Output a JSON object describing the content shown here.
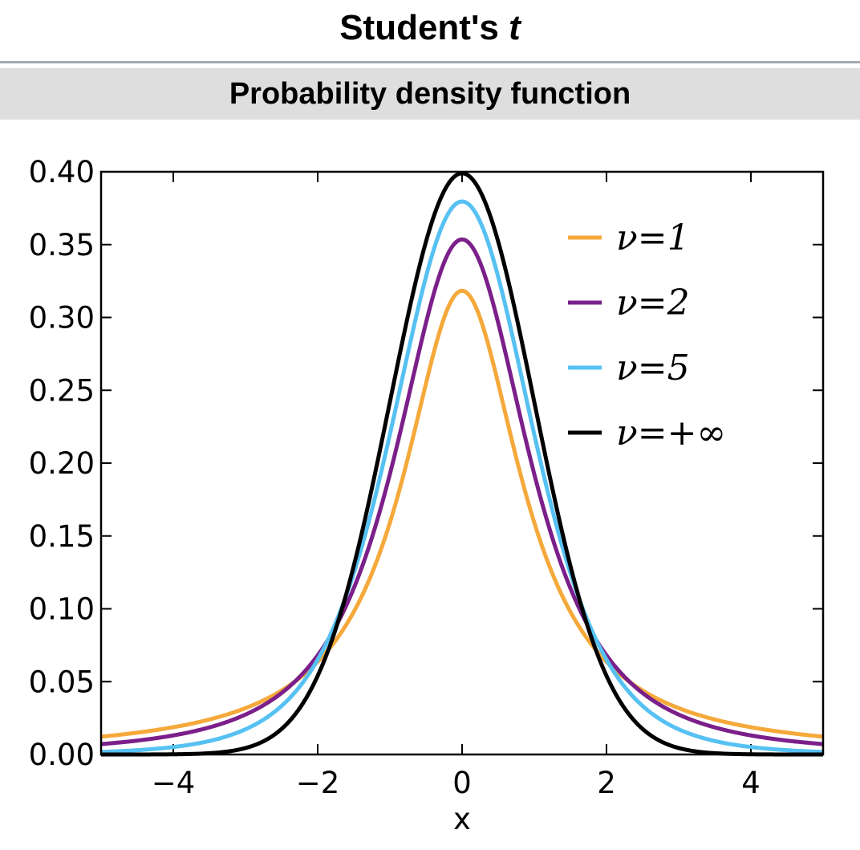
{
  "header": {
    "title_main": "Student's",
    "title_symbol": "t",
    "section": "Probability density function"
  },
  "chart_data": {
    "type": "line",
    "xlabel": "x",
    "ylabel": "",
    "xlim": [
      -5,
      5
    ],
    "ylim": [
      0,
      0.4
    ],
    "x_ticks": [
      -4,
      -2,
      0,
      2,
      4
    ],
    "x_tick_labels": [
      "−4",
      "−2",
      "0",
      "2",
      "4"
    ],
    "y_ticks": [
      0,
      0.05,
      0.1,
      0.15,
      0.2,
      0.25,
      0.3,
      0.35,
      0.4
    ],
    "y_tick_labels": [
      "0.00",
      "0.05",
      "0.10",
      "0.15",
      "0.20",
      "0.25",
      "0.30",
      "0.35",
      "0.40"
    ],
    "grid": false,
    "legend_position": "top-right",
    "x": [
      -5,
      -4.5,
      -4,
      -3.5,
      -3,
      -2.5,
      -2,
      -1.5,
      -1,
      -0.5,
      0,
      0.5,
      1,
      1.5,
      2,
      2.5,
      3,
      3.5,
      4,
      4.5,
      5
    ],
    "series": [
      {
        "name": "ν=1",
        "color": "#f5a93b",
        "dof": 1,
        "values": [
          0.0122,
          0.0149,
          0.0187,
          0.0241,
          0.0318,
          0.0439,
          0.0637,
          0.0979,
          0.1592,
          0.2546,
          0.3183,
          0.2546,
          0.1592,
          0.0979,
          0.0637,
          0.0439,
          0.0318,
          0.0241,
          0.0187,
          0.0149,
          0.0122
        ]
      },
      {
        "name": "ν=2",
        "color": "#7b1f8a",
        "dof": 2,
        "values": [
          0.0071,
          0.0095,
          0.0131,
          0.0185,
          0.0269,
          0.041,
          0.068,
          0.117,
          0.1925,
          0.2963,
          0.3536,
          0.2963,
          0.1925,
          0.117,
          0.068,
          0.041,
          0.0269,
          0.0185,
          0.0131,
          0.0095,
          0.0071
        ]
      },
      {
        "name": "ν=5",
        "color": "#56c1f2",
        "dof": 5,
        "values": [
          0.0018,
          0.003,
          0.0051,
          0.0087,
          0.0173,
          0.0342,
          0.0651,
          0.1245,
          0.2197,
          0.3279,
          0.3796,
          0.3279,
          0.2197,
          0.1245,
          0.0651,
          0.0342,
          0.0173,
          0.0087,
          0.0051,
          0.003,
          0.0018
        ]
      },
      {
        "name": "ν=+∞",
        "color": "#000000",
        "dof": null,
        "values": [
          0.0,
          0.0,
          0.0001,
          0.0009,
          0.0044,
          0.0175,
          0.054,
          0.1295,
          0.242,
          0.3521,
          0.3989,
          0.3521,
          0.242,
          0.1295,
          0.054,
          0.0175,
          0.0044,
          0.0009,
          0.0001,
          0.0,
          0.0
        ]
      }
    ]
  }
}
